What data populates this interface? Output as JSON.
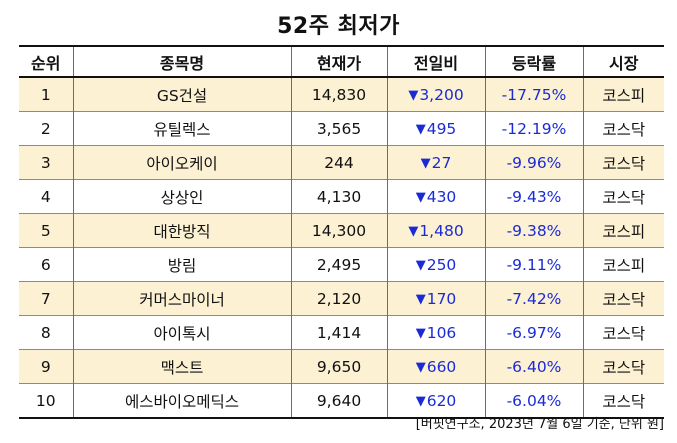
{
  "title": "52주 최저가",
  "headers": [
    "순위",
    "종목명",
    "현재가",
    "전일비",
    "등락률",
    "시장"
  ],
  "rows": [
    {
      "rank": "1",
      "name": "GS건설",
      "price": "14,830",
      "arrow": "▼",
      "change": "3,200",
      "rate": "-17.75%",
      "market": "코스피",
      "shaded": true
    },
    {
      "rank": "2",
      "name": "유틸렉스",
      "price": "3,565",
      "arrow": "▼",
      "change": "495",
      "rate": "-12.19%",
      "market": "코스닥",
      "shaded": false
    },
    {
      "rank": "3",
      "name": "아이오케이",
      "price": "244",
      "arrow": "▼",
      "change": "27",
      "rate": "-9.96%",
      "market": "코스닥",
      "shaded": true
    },
    {
      "rank": "4",
      "name": "상상인",
      "price": "4,130",
      "arrow": "▼",
      "change": "430",
      "rate": "-9.43%",
      "market": "코스닥",
      "shaded": false
    },
    {
      "rank": "5",
      "name": "대한방직",
      "price": "14,300",
      "arrow": "▼",
      "change": "1,480",
      "rate": "-9.38%",
      "market": "코스피",
      "shaded": true
    },
    {
      "rank": "6",
      "name": "방림",
      "price": "2,495",
      "arrow": "▼",
      "change": "250",
      "rate": "-9.11%",
      "market": "코스피",
      "shaded": false
    },
    {
      "rank": "7",
      "name": "커머스마이너",
      "price": "2,120",
      "arrow": "▼",
      "change": "170",
      "rate": "-7.42%",
      "market": "코스닥",
      "shaded": true
    },
    {
      "rank": "8",
      "name": "아이톡시",
      "price": "1,414",
      "arrow": "▼",
      "change": "106",
      "rate": "-6.97%",
      "market": "코스닥",
      "shaded": false
    },
    {
      "rank": "9",
      "name": "맥스트",
      "price": "9,650",
      "arrow": "▼",
      "change": "660",
      "rate": "-6.40%",
      "market": "코스닥",
      "shaded": true
    },
    {
      "rank": "10",
      "name": "에스바이오메딕스",
      "price": "9,640",
      "arrow": "▼",
      "change": "620",
      "rate": "-6.04%",
      "market": "코스닥",
      "shaded": false
    }
  ],
  "source": "[버핏연구소, 2023년 7월 6일 기준, 단위 원]",
  "colors": {
    "shaded_row": "#fdf1d4",
    "down": "#1a2bd6"
  }
}
